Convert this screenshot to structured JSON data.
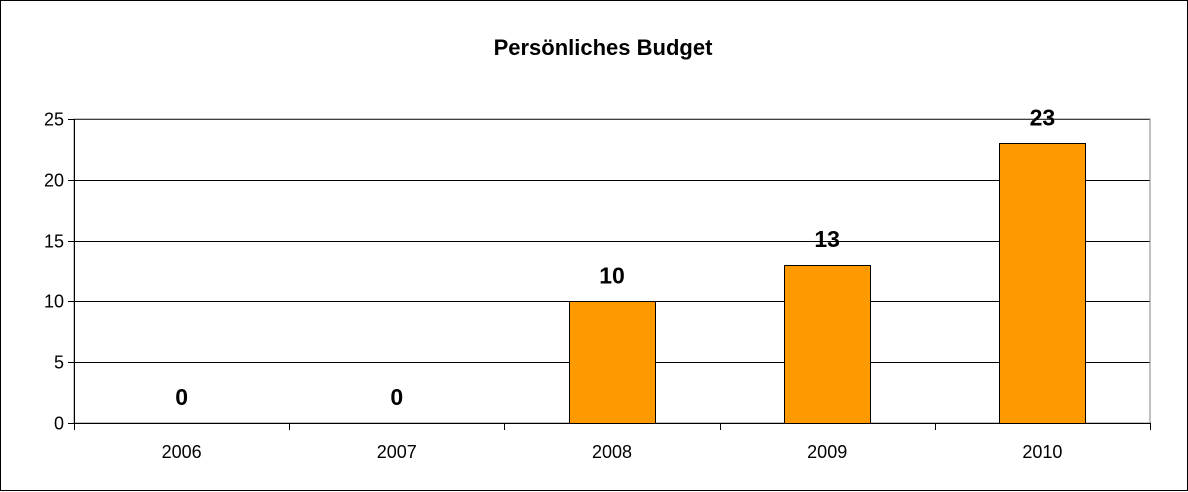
{
  "chart_data": {
    "type": "bar",
    "title": "Persönliches Budget",
    "categories": [
      "2006",
      "2007",
      "2008",
      "2009",
      "2010"
    ],
    "values": [
      0,
      0,
      10,
      13,
      23
    ],
    "data_labels": [
      "0",
      "0",
      "10",
      "13",
      "23"
    ],
    "ylim": [
      0,
      25
    ],
    "yticks": [
      0,
      5,
      10,
      15,
      20,
      25
    ],
    "xlabel": "",
    "ylabel": "",
    "grid": true,
    "legend": "none",
    "colors": {
      "bar_fill": "#FF9900",
      "bar_stroke": "#000000",
      "plot_border": "#808080",
      "gridline": "#000000",
      "axis": "#000000",
      "text": "#000000"
    }
  }
}
